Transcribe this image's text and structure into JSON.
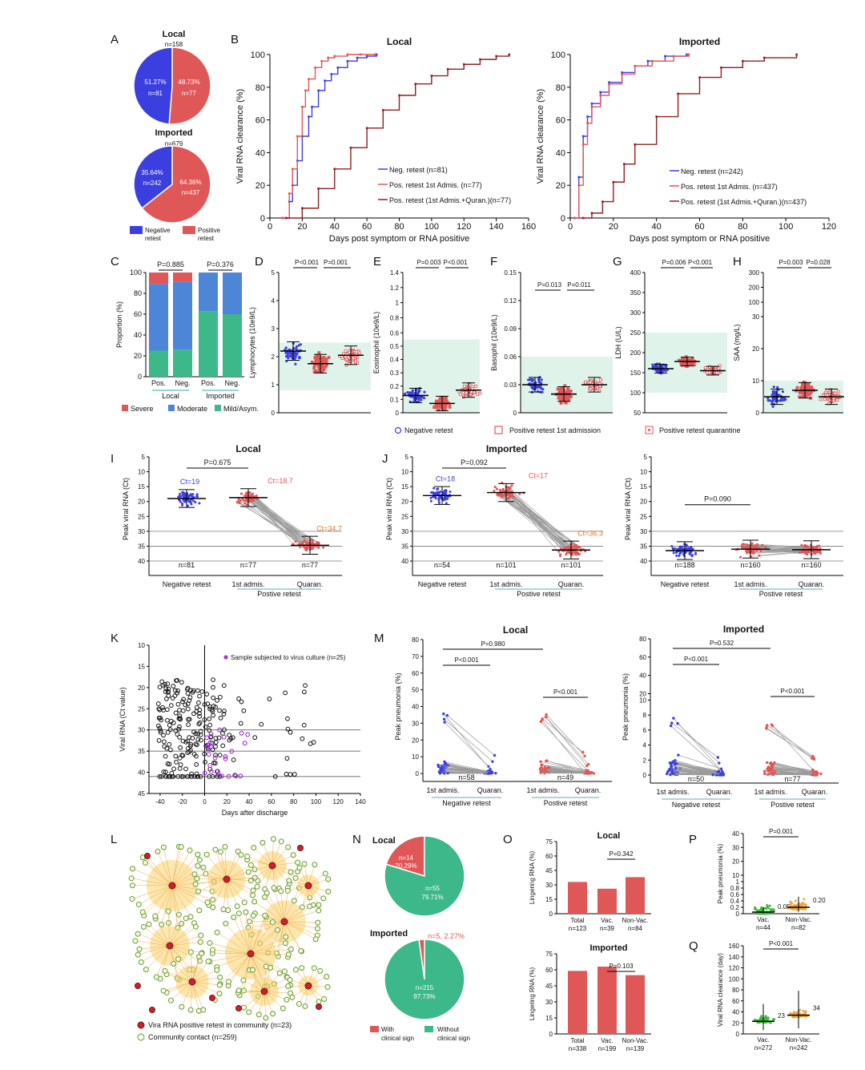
{
  "colors": {
    "blue": "#3b3fe0",
    "red": "#e05757",
    "darkred": "#8f2020",
    "green": "#3cb88a",
    "orange": "#f2a33a",
    "lightgreen": "#dff3ea",
    "gray": "#9a9a9a",
    "vacgreen": "#3db93d"
  },
  "panel_labels": [
    "A",
    "B",
    "C",
    "D",
    "E",
    "F",
    "G",
    "H",
    "I",
    "J",
    "K",
    "L",
    "M",
    "N",
    "O",
    "P",
    "Q"
  ],
  "chart_data": [
    {
      "id": "A1",
      "type": "pie",
      "title": "Local",
      "subtitle": "n=158",
      "slices": [
        {
          "label": "51.27%",
          "n": "n=81",
          "value": 51.27,
          "group": "Negative retest"
        },
        {
          "label": "48.73%",
          "n": "n=77",
          "value": 48.73,
          "group": "Positive retest"
        }
      ]
    },
    {
      "id": "A2",
      "type": "pie",
      "title": "Imported",
      "subtitle": "n=679",
      "slices": [
        {
          "label": "35.64%",
          "n": "n=242",
          "value": 35.64,
          "group": "Negative retest"
        },
        {
          "label": "64.36%",
          "n": "n=437",
          "value": 64.36,
          "group": "Positive retest"
        }
      ],
      "legend": [
        "Negative retest",
        "Positive retest"
      ]
    },
    {
      "id": "B1",
      "type": "line",
      "title": "Local",
      "xlabel": "Days post symptom or RNA positive",
      "ylabel": "Viral RNA clearance (%)",
      "xlim": [
        0,
        160
      ],
      "ylim": [
        0,
        100
      ],
      "xticks": [
        0,
        20,
        40,
        60,
        80,
        100,
        120,
        140,
        160
      ],
      "yticks": [
        0,
        20,
        40,
        60,
        80,
        100
      ],
      "series": [
        {
          "name": "Neg. retest (n=81)",
          "x": [
            8,
            12,
            14,
            17,
            20,
            24,
            26,
            30,
            34,
            38,
            42,
            48,
            54,
            60,
            66
          ],
          "y": [
            0,
            10,
            20,
            35,
            50,
            62,
            68,
            78,
            84,
            88,
            92,
            96,
            98,
            99,
            100
          ]
        },
        {
          "name": "Pos. retest 1st Admis. (n=77)",
          "x": [
            8,
            12,
            14,
            17,
            20,
            22,
            24,
            28,
            32,
            36,
            40,
            48,
            56,
            65
          ],
          "y": [
            0,
            15,
            30,
            50,
            68,
            78,
            85,
            92,
            96,
            98,
            99,
            100,
            100,
            100
          ]
        },
        {
          "name": "Pos. retest (1st Admis.+Quran.)(n=77)",
          "x": [
            10,
            20,
            30,
            40,
            50,
            60,
            70,
            80,
            90,
            100,
            110,
            120,
            130,
            140,
            148
          ],
          "y": [
            0,
            6,
            18,
            30,
            43,
            55,
            66,
            75,
            82,
            87,
            91,
            94,
            97,
            99,
            100
          ]
        }
      ]
    },
    {
      "id": "B2",
      "type": "line",
      "title": "Imported",
      "xlabel": "Days post symptom or RNA positive",
      "ylabel": "Viral RNA clearance (%)",
      "xlim": [
        0,
        120
      ],
      "ylim": [
        0,
        100
      ],
      "xticks": [
        0,
        20,
        40,
        60,
        80,
        100,
        120
      ],
      "yticks": [
        0,
        20,
        40,
        60,
        80,
        100
      ],
      "series": [
        {
          "name": "Neg. retest (n=242)",
          "x": [
            2,
            4,
            6,
            8,
            10,
            14,
            18,
            24,
            30,
            36,
            44,
            54
          ],
          "y": [
            0,
            25,
            50,
            62,
            70,
            77,
            83,
            89,
            93,
            96,
            99,
            100
          ]
        },
        {
          "name": "Pos. retest 1st Admis. (n=437)",
          "x": [
            2,
            4,
            6,
            8,
            10,
            14,
            18,
            24,
            30,
            38,
            48,
            55
          ],
          "y": [
            0,
            20,
            45,
            58,
            68,
            75,
            82,
            88,
            93,
            96,
            99,
            100
          ]
        },
        {
          "name": "Pos. retest (1st Admis.+Quran.)(n=437)",
          "x": [
            6,
            10,
            15,
            20,
            25,
            30,
            40,
            50,
            60,
            70,
            80,
            90,
            105
          ],
          "y": [
            0,
            3,
            10,
            22,
            33,
            45,
            62,
            76,
            86,
            92,
            96,
            98,
            100
          ]
        }
      ]
    },
    {
      "id": "C",
      "type": "bar",
      "stacked": true,
      "ylabel": "Proportion (%)",
      "yticks": [
        0,
        20,
        40,
        60,
        80,
        100
      ],
      "categories": [
        "Pos.",
        "Neg.",
        "Pos.",
        "Neg."
      ],
      "groups": [
        "Local",
        "Imported"
      ],
      "p": [
        "P=0.885",
        "P=0.376"
      ],
      "series": [
        {
          "name": "Mild/Asym.",
          "values": [
            25,
            26,
            63,
            60
          ]
        },
        {
          "name": "Moderate",
          "values": [
            64,
            65,
            37,
            40
          ]
        },
        {
          "name": "Severe",
          "values": [
            11,
            9,
            0,
            0
          ]
        }
      ]
    },
    {
      "id": "D",
      "type": "scatter",
      "ylabel": "Lymphocytes (10e9/L)",
      "yticks": [
        0,
        1,
        2,
        3,
        4,
        5
      ],
      "ylim": [
        0,
        5
      ],
      "medians": [
        2.2,
        1.75,
        2.05
      ],
      "p": [
        "P<0.001",
        "P=0.001"
      ]
    },
    {
      "id": "E",
      "type": "scatter",
      "ylabel": "Eosinophil (10e9/L)",
      "yticks": [
        0.0,
        0.1,
        0.2,
        0.3,
        0.4,
        0.5,
        0.6,
        0.8,
        1.0,
        1.2,
        1.4
      ],
      "ylim": [
        0,
        1.4
      ],
      "medians": [
        0.13,
        0.07,
        0.17
      ],
      "p": [
        "P=0.003",
        "P<0.001"
      ]
    },
    {
      "id": "F",
      "type": "scatter",
      "ylabel": "Basophil (10e9/L)",
      "yticks": [
        0.0,
        0.03,
        0.06,
        0.09,
        0.12,
        0.15
      ],
      "ylim": [
        0,
        0.15
      ],
      "medians": [
        0.03,
        0.02,
        0.03
      ],
      "p": [
        "P=0.013",
        "P=0.011"
      ]
    },
    {
      "id": "G",
      "type": "scatter",
      "ylabel": "LDH (U/L)",
      "yticks": [
        50,
        100,
        150,
        200,
        250,
        300,
        350,
        400
      ],
      "ylim": [
        50,
        400
      ],
      "medians": [
        160,
        178,
        155
      ],
      "p": [
        "P=0.006",
        "P<0.001"
      ]
    },
    {
      "id": "H",
      "type": "scatter",
      "ylabel": "SAA (mg/L)",
      "yticks": [
        0,
        10,
        20,
        30,
        100,
        200,
        300
      ],
      "medians": [
        5,
        7,
        5
      ],
      "p": [
        "P=0.003",
        "P=0.028"
      ],
      "legend": [
        "Negative retest",
        "Positive retest 1st admission",
        "Positive retest quarantine"
      ]
    },
    {
      "id": "I",
      "type": "scatter",
      "title": "Local",
      "ylabel": "Peak viral RNA (Ct)",
      "yticks": [
        5,
        10,
        15,
        20,
        25,
        30,
        35,
        40
      ],
      "categories": [
        "Negative retest",
        "1st admis.",
        "Quaran."
      ],
      "group": "Postive retest",
      "n": [
        "n=81",
        "n=77",
        "n=77"
      ],
      "ct": [
        "Ct=19",
        "Ct=18.7",
        "Ct=34.7"
      ],
      "p": "P=0.675"
    },
    {
      "id": "J1",
      "type": "scatter",
      "title": "Imported",
      "ylabel": "Peak viral RNA (Ct)",
      "yticks": [
        5,
        10,
        15,
        20,
        25,
        30,
        35,
        40
      ],
      "categories": [
        "Negative retest",
        "1st admis.",
        "Quaran."
      ],
      "group": "Postive retest",
      "n": [
        "n=54",
        "n=101",
        "n=101"
      ],
      "ct": [
        "Ct=18",
        "Ct=17",
        "Ct=36.3"
      ],
      "p": "P=0.092"
    },
    {
      "id": "J2",
      "type": "scatter",
      "ylabel": "Peak viral RNA (Ct)",
      "yticks": [
        5,
        10,
        15,
        20,
        25,
        30,
        35,
        40
      ],
      "categories": [
        "Negative retest",
        "1st admis.",
        "Quaran."
      ],
      "group": "Postive retest",
      "n": [
        "n=188",
        "n=160",
        "n=160"
      ],
      "p": "P=0.090"
    },
    {
      "id": "K",
      "type": "scatter",
      "xlabel": "Days after discharge",
      "ylabel": "Viral RNA (Ct value)",
      "xticks": [
        -40,
        -20,
        0,
        20,
        40,
        60,
        80,
        100,
        120,
        140
      ],
      "yticks": [
        10,
        15,
        20,
        25,
        30,
        35,
        40,
        45
      ],
      "legend": "Sample subjected to virus culture (n=25)"
    },
    {
      "id": "L",
      "type": "network",
      "legend": [
        "Vira RNA positive retest in community (n=23)",
        "Community contact (n=259)"
      ]
    },
    {
      "id": "M1",
      "type": "scatter",
      "title": "Local",
      "ylabel": "Peak pneumonia (%)",
      "yticks": [
        0,
        10,
        20,
        30,
        40,
        50,
        60,
        70,
        80
      ],
      "categories": [
        "1st admis.",
        "Quaran.",
        "1st admis.",
        "Quaran."
      ],
      "groups": [
        "Negative retest",
        "Postive retest"
      ],
      "n": [
        "n=58",
        "n=49"
      ],
      "p": [
        "P=0.980",
        "P<0.001",
        "P<0.001"
      ]
    },
    {
      "id": "M2",
      "type": "scatter",
      "title": "Imported",
      "ylabel": "Peak pneumonia (%)",
      "yticks": [
        0,
        2,
        4,
        6,
        8,
        10,
        20,
        40,
        60,
        80
      ],
      "categories": [
        "1st admis.",
        "Quaran.",
        "1st admis.",
        "Quaran."
      ],
      "groups": [
        "Negative retest",
        "Postive retest"
      ],
      "n": [
        "n=50",
        "n=77"
      ],
      "p": [
        "P=0.532",
        "P<0.001",
        "P<0.001"
      ]
    },
    {
      "id": "N1",
      "type": "pie",
      "title": "Local",
      "slices": [
        {
          "label": "n=14",
          "pct": "20.29%",
          "value": 20.29,
          "group": "With clinical sign"
        },
        {
          "label": "n=55",
          "pct": "79.71%",
          "value": 79.71,
          "group": "Without clinical sign"
        }
      ]
    },
    {
      "id": "N2",
      "type": "pie",
      "title": "Imported",
      "slices": [
        {
          "label": "n=5, 2.27%",
          "value": 2.27,
          "group": "With clinical sign"
        },
        {
          "label": "n=215",
          "pct": "97.73%",
          "value": 97.73,
          "group": "Without clinical sign"
        }
      ],
      "legend": [
        "With clinical sign",
        "Without clinical sign"
      ]
    },
    {
      "id": "O1",
      "type": "bar",
      "title": "Local",
      "ylabel": "Lingering RNA (%)",
      "yticks": [
        0,
        15,
        30,
        45,
        60,
        75
      ],
      "categories": [
        "Total",
        "Vac.",
        "Non-Vac."
      ],
      "n": [
        "n=123",
        "n=39",
        "n=84"
      ],
      "values": [
        33,
        26,
        38
      ],
      "p": "P=0.342"
    },
    {
      "id": "O2",
      "type": "bar",
      "title": "Imported",
      "ylabel": "Lingering RNA (%)",
      "yticks": [
        0,
        15,
        30,
        45,
        60,
        75
      ],
      "categories": [
        "Total",
        "Vac.",
        "Non-Vac."
      ],
      "n": [
        "n=338",
        "n=199",
        "n=139"
      ],
      "values": [
        59,
        63,
        55
      ],
      "p": "P=0.103"
    },
    {
      "id": "P",
      "type": "scatter",
      "ylabel": "Peak pneumonia (%)",
      "yticks": [
        0.0,
        0.2,
        0.4,
        0.6,
        0.8,
        1.0,
        10,
        20,
        30,
        40
      ],
      "categories": [
        "Vac.",
        "Non-Vac."
      ],
      "n": [
        "n=44",
        "n=82"
      ],
      "medians": [
        0.05,
        0.2
      ],
      "p": "P=0.001"
    },
    {
      "id": "Q",
      "type": "scatter",
      "ylabel": "Viral RNA clearance (day)",
      "yticks": [
        0,
        20,
        40,
        60,
        80,
        100,
        120,
        140,
        160
      ],
      "categories": [
        "Vac.",
        "Non-Vac."
      ],
      "n": [
        "n=272",
        "n=242"
      ],
      "medians": [
        23,
        34
      ],
      "p": "P<0.001"
    }
  ]
}
